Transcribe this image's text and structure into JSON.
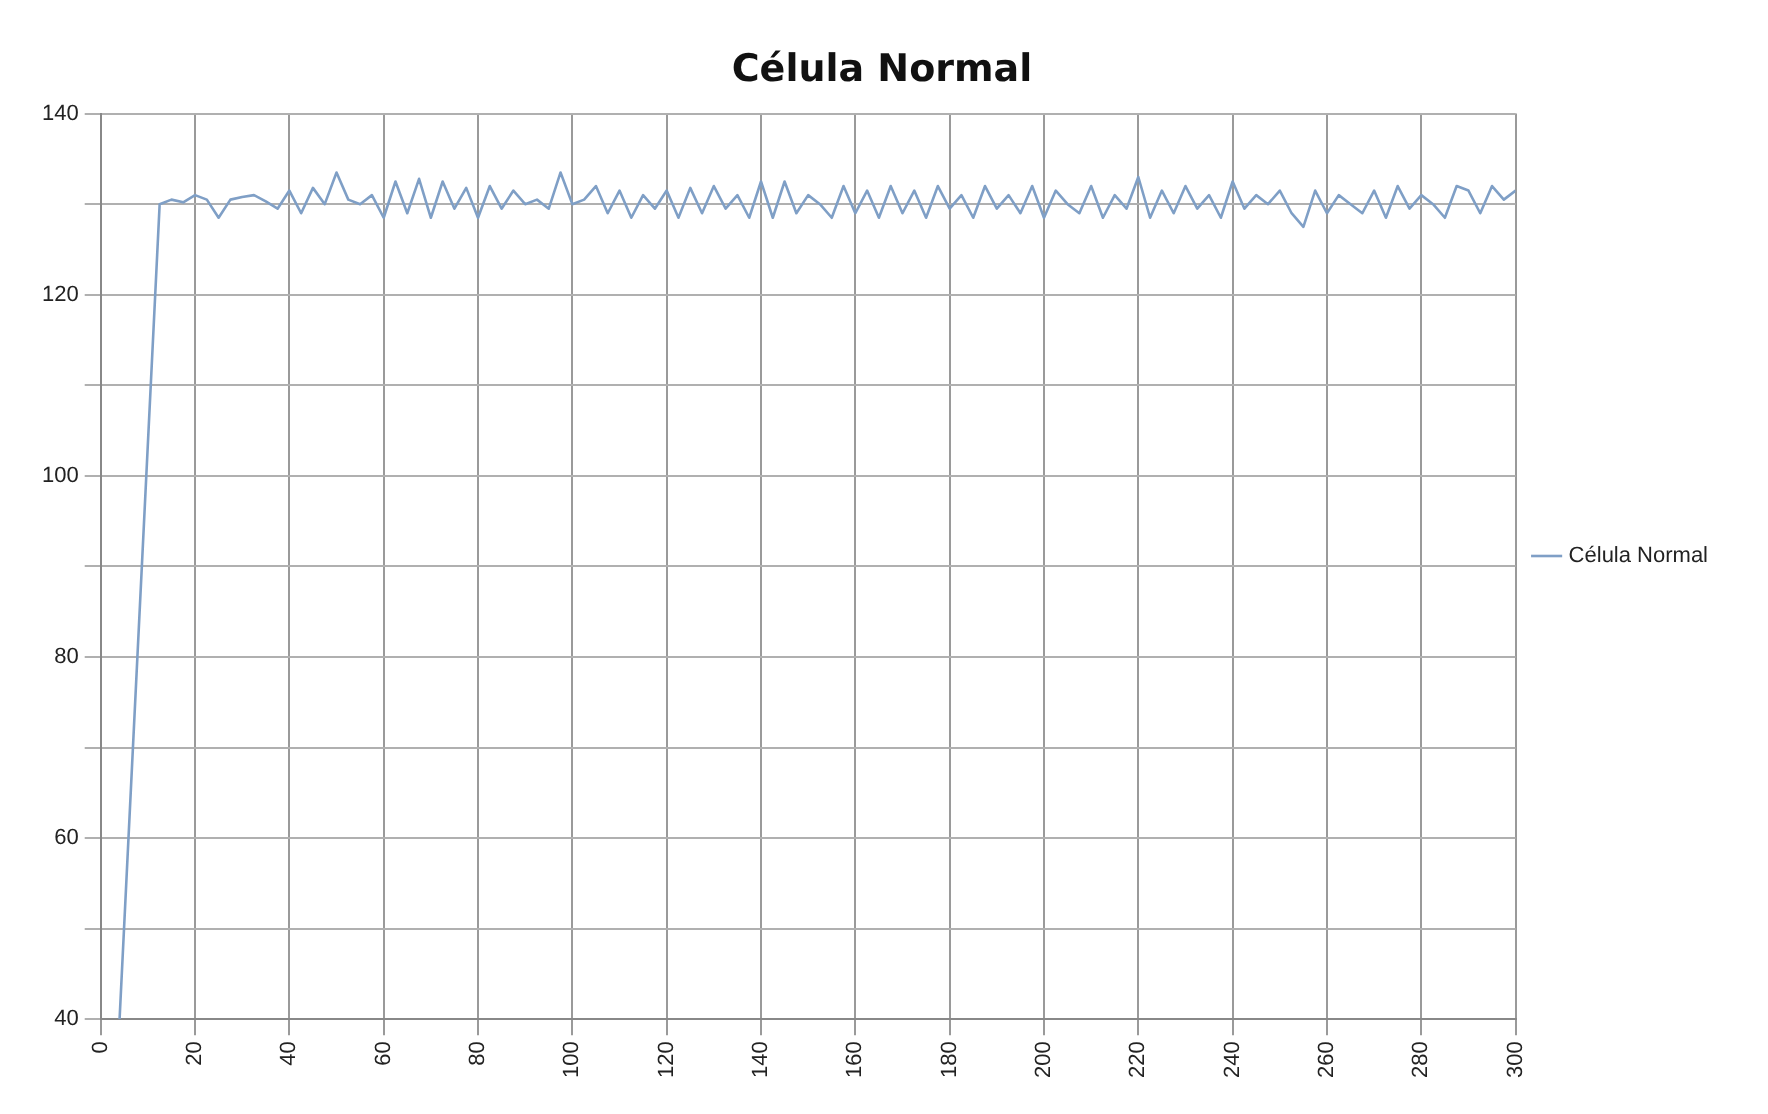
{
  "chart_data": {
    "type": "line",
    "title": "Célula Normal",
    "legend": "right",
    "grid": true,
    "marker": "none",
    "line_style": "solid",
    "xlim": [
      0,
      300
    ],
    "xticks": [
      0,
      20,
      40,
      60,
      80,
      100,
      120,
      140,
      160,
      180,
      200,
      220,
      240,
      260,
      280,
      300
    ],
    "ylim": [
      40,
      140
    ],
    "yticks": [
      40,
      {
        "value": 50,
        "label": null
      },
      60,
      {
        "value": 70,
        "label": null
      },
      80,
      {
        "value": 90,
        "label": null
      },
      100,
      {
        "value": 110,
        "label": null
      },
      120,
      {
        "value": 130,
        "label": null
      },
      140
    ],
    "series": [
      {
        "name": "Célula Normal",
        "color": "#7f9fc6",
        "x": [
          4,
          12.5,
          15,
          17.5,
          20,
          22.5,
          25,
          27.5,
          30,
          32.5,
          35,
          37.5,
          40,
          42.5,
          45,
          47.5,
          50,
          52.5,
          55,
          57.5,
          60,
          62.5,
          65,
          67.5,
          70,
          72.5,
          75,
          77.5,
          80,
          82.5,
          85,
          87.5,
          90,
          92.5,
          95,
          97.5,
          100,
          102.5,
          105,
          107.5,
          110,
          112.5,
          115,
          117.5,
          120,
          122.5,
          125,
          127.5,
          130,
          132.5,
          135,
          137.5,
          140,
          142.5,
          145,
          147.5,
          150,
          152.5,
          155,
          157.5,
          160,
          162.5,
          165,
          167.5,
          170,
          172.5,
          175,
          177.5,
          180,
          182.5,
          185,
          187.5,
          190,
          192.5,
          195,
          197.5,
          200,
          202.5,
          205,
          207.5,
          210,
          212.5,
          215,
          217.5,
          220,
          222.5,
          225,
          227.5,
          230,
          232.5,
          235,
          237.5,
          240,
          242.5,
          245,
          247.5,
          250,
          252.5,
          255,
          257.5,
          260,
          262.5,
          265,
          267.5,
          270,
          272.5,
          275,
          277.5,
          280,
          282.5,
          285,
          287.5,
          290,
          292.5,
          295,
          297.5,
          300
        ],
        "values": [
          40,
          130,
          130.5,
          130.2,
          131,
          130.5,
          128.5,
          130.5,
          130.8,
          131,
          130.3,
          129.5,
          131.5,
          129,
          131.8,
          130,
          133.5,
          130.5,
          130,
          131,
          128.5,
          132.5,
          129,
          132.8,
          128.5,
          132.5,
          129.5,
          131.8,
          128.5,
          132,
          129.5,
          131.5,
          130,
          130.5,
          129.5,
          133.5,
          130,
          130.5,
          132,
          129,
          131.5,
          128.5,
          131,
          129.5,
          131.5,
          128.5,
          131.8,
          129,
          132,
          129.5,
          131,
          128.5,
          132.5,
          128.5,
          132.5,
          129,
          131,
          130,
          128.5,
          132,
          129,
          131.5,
          128.5,
          132,
          129,
          131.5,
          128.5,
          132,
          129.5,
          131,
          128.5,
          132,
          129.5,
          131,
          129,
          132,
          128.5,
          131.5,
          130,
          129,
          132,
          128.5,
          131,
          129.5,
          133,
          128.5,
          131.5,
          129,
          132,
          129.5,
          131,
          128.5,
          132.5,
          129.5,
          131,
          130,
          131.5,
          129,
          127.5,
          131.5,
          129,
          131,
          130,
          129,
          131.5,
          128.5,
          132,
          129.5,
          131,
          130,
          128.5,
          132,
          131.5,
          129,
          132,
          130.5,
          131.5
        ]
      }
    ]
  }
}
